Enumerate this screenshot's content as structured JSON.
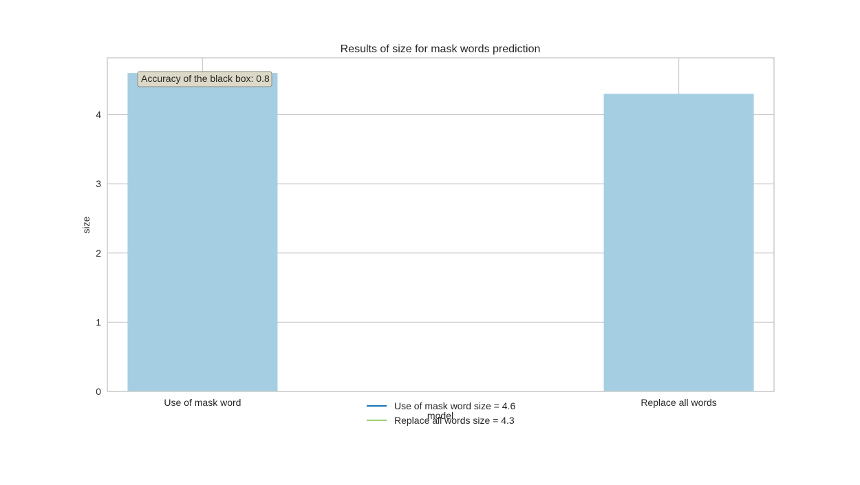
{
  "chart_data": {
    "type": "bar",
    "title": "Results of size for mask words prediction",
    "xlabel": "model",
    "ylabel": "size",
    "categories": [
      "Use of mask word",
      "Replace all words"
    ],
    "values": [
      4.6,
      4.3
    ],
    "ylim": [
      0,
      4.82
    ],
    "yticks": [
      0,
      1,
      2,
      3,
      4
    ],
    "grid": true,
    "bar_color": "#a6cee3",
    "annotation": "Accuracy of the black box: 0.8",
    "legend": {
      "placement": "bottom-center",
      "entries": [
        {
          "label": "Use of mask word size = 4.6",
          "color": "#1f78b4"
        },
        {
          "label": "Replace all words size = 4.3",
          "color": "#a1cf7a"
        }
      ]
    }
  }
}
